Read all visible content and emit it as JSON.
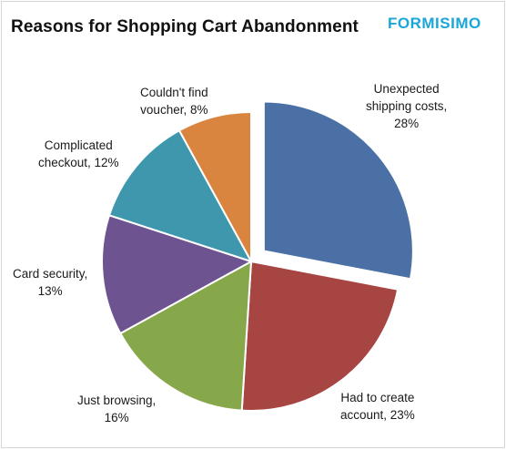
{
  "title": "Reasons for Shopping Cart Abandonment",
  "logo_text": "FORMISIMO",
  "chart_data": {
    "type": "pie",
    "title": "Reasons for Shopping Cart Abandonment",
    "slices": [
      {
        "label": "Unexpected shipping costs",
        "value": 28,
        "display_line1": "Unexpected",
        "display_line2": "shipping costs,",
        "display_line3": "28%",
        "color": "#4a70a6",
        "exploded": true
      },
      {
        "label": "Had to create account",
        "value": 23,
        "display_line1": "Had to create",
        "display_line2": "account, 23%",
        "color": "#a74543",
        "exploded": false
      },
      {
        "label": "Just browsing",
        "value": 16,
        "display_line1": "Just browsing,",
        "display_line2": "16%",
        "color": "#87a84a",
        "exploded": false
      },
      {
        "label": "Card security",
        "value": 13,
        "display_line1": "Card security,",
        "display_line2": "13%",
        "color": "#6e5391",
        "exploded": false
      },
      {
        "label": "Complicated checkout",
        "value": 12,
        "display_line1": "Complicated",
        "display_line2": "checkout, 12%",
        "color": "#3f97ad",
        "exploded": false
      },
      {
        "label": "Couldn't find voucher",
        "value": 8,
        "display_line1": "Couldn't find",
        "display_line2": "voucher, 8%",
        "color": "#d98540",
        "exploded": false
      }
    ]
  }
}
